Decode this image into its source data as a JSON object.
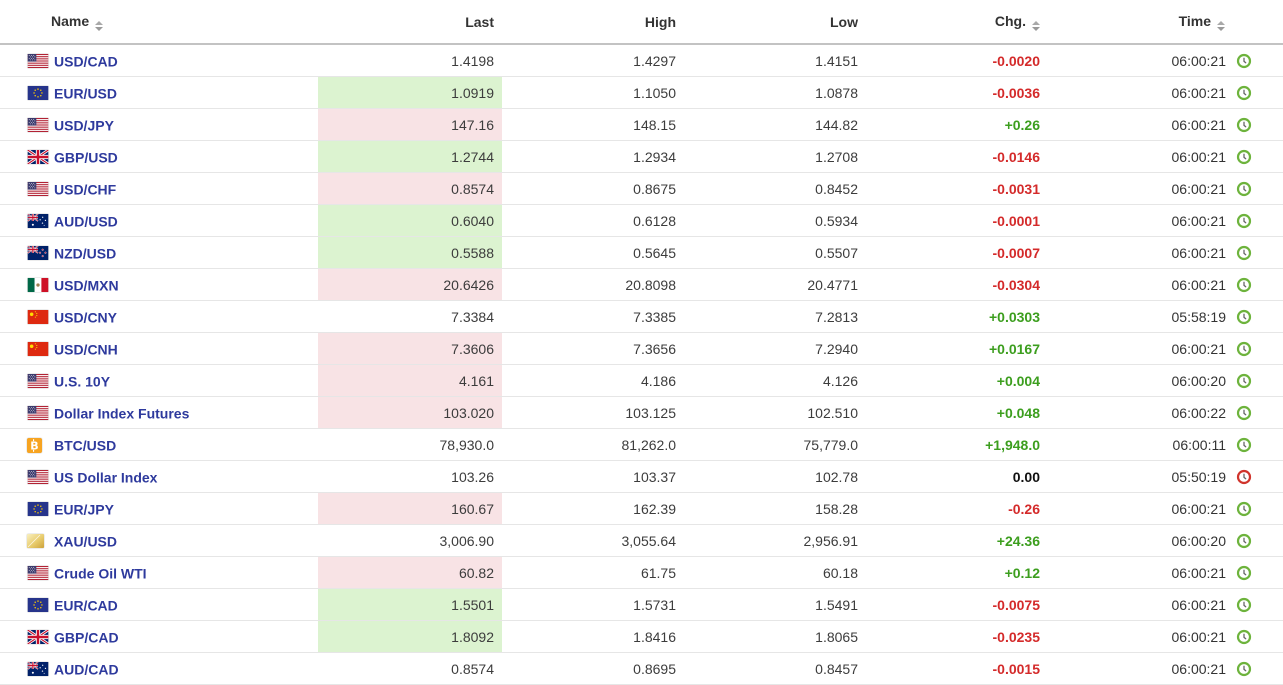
{
  "table": {
    "columns": [
      {
        "label": "Name",
        "sortable": true
      },
      {
        "label": "Last",
        "sortable": false
      },
      {
        "label": "High",
        "sortable": false
      },
      {
        "label": "Low",
        "sortable": false
      },
      {
        "label": "Chg.",
        "sortable": true
      },
      {
        "label": "Time",
        "sortable": true
      }
    ],
    "rows": [
      {
        "name": "USD/CAD",
        "icon": "us-flag-icon",
        "last": "1.4198",
        "last_highlight": "none",
        "high": "1.4297",
        "low": "1.4151",
        "chg": "-0.0020",
        "chg_dir": "down",
        "time": "06:00:21",
        "clock": "green"
      },
      {
        "name": "EUR/USD",
        "icon": "eu-flag-icon",
        "last": "1.0919",
        "last_highlight": "up",
        "high": "1.1050",
        "low": "1.0878",
        "chg": "-0.0036",
        "chg_dir": "down",
        "time": "06:00:21",
        "clock": "green"
      },
      {
        "name": "USD/JPY",
        "icon": "us-flag-icon",
        "last": "147.16",
        "last_highlight": "down",
        "high": "148.15",
        "low": "144.82",
        "chg": "+0.26",
        "chg_dir": "up",
        "time": "06:00:21",
        "clock": "green"
      },
      {
        "name": "GBP/USD",
        "icon": "uk-flag-icon",
        "last": "1.2744",
        "last_highlight": "up",
        "high": "1.2934",
        "low": "1.2708",
        "chg": "-0.0146",
        "chg_dir": "down",
        "time": "06:00:21",
        "clock": "green"
      },
      {
        "name": "USD/CHF",
        "icon": "us-flag-icon",
        "last": "0.8574",
        "last_highlight": "down",
        "high": "0.8675",
        "low": "0.8452",
        "chg": "-0.0031",
        "chg_dir": "down",
        "time": "06:00:21",
        "clock": "green"
      },
      {
        "name": "AUD/USD",
        "icon": "au-flag-icon",
        "last": "0.6040",
        "last_highlight": "up",
        "high": "0.6128",
        "low": "0.5934",
        "chg": "-0.0001",
        "chg_dir": "down",
        "time": "06:00:21",
        "clock": "green"
      },
      {
        "name": "NZD/USD",
        "icon": "nz-flag-icon",
        "last": "0.5588",
        "last_highlight": "up",
        "high": "0.5645",
        "low": "0.5507",
        "chg": "-0.0007",
        "chg_dir": "down",
        "time": "06:00:21",
        "clock": "green"
      },
      {
        "name": "USD/MXN",
        "icon": "mx-flag-icon",
        "last": "20.6426",
        "last_highlight": "down",
        "high": "20.8098",
        "low": "20.4771",
        "chg": "-0.0304",
        "chg_dir": "down",
        "time": "06:00:21",
        "clock": "green"
      },
      {
        "name": "USD/CNY",
        "icon": "cn-flag-icon",
        "last": "7.3384",
        "last_highlight": "none",
        "high": "7.3385",
        "low": "7.2813",
        "chg": "+0.0303",
        "chg_dir": "up",
        "time": "05:58:19",
        "clock": "green"
      },
      {
        "name": "USD/CNH",
        "icon": "cn-flag-icon",
        "last": "7.3606",
        "last_highlight": "down",
        "high": "7.3656",
        "low": "7.2940",
        "chg": "+0.0167",
        "chg_dir": "up",
        "time": "06:00:21",
        "clock": "green"
      },
      {
        "name": "U.S. 10Y",
        "icon": "us-flag-icon",
        "last": "4.161",
        "last_highlight": "down",
        "high": "4.186",
        "low": "4.126",
        "chg": "+0.004",
        "chg_dir": "up",
        "time": "06:00:20",
        "clock": "green"
      },
      {
        "name": "Dollar Index Futures",
        "icon": "us-flag-icon",
        "last": "103.020",
        "last_highlight": "down",
        "high": "103.125",
        "low": "102.510",
        "chg": "+0.048",
        "chg_dir": "up",
        "time": "06:00:22",
        "clock": "green"
      },
      {
        "name": "BTC/USD",
        "icon": "btc-icon",
        "last": "78,930.0",
        "last_highlight": "none",
        "high": "81,262.0",
        "low": "75,779.0",
        "chg": "+1,948.0",
        "chg_dir": "up",
        "time": "06:00:11",
        "clock": "green"
      },
      {
        "name": "US Dollar Index",
        "icon": "us-flag-icon",
        "last": "103.26",
        "last_highlight": "none",
        "high": "103.37",
        "low": "102.78",
        "chg": "0.00",
        "chg_dir": "flat",
        "time": "05:50:19",
        "clock": "red"
      },
      {
        "name": "EUR/JPY",
        "icon": "eu-flag-icon",
        "last": "160.67",
        "last_highlight": "down",
        "high": "162.39",
        "low": "158.28",
        "chg": "-0.26",
        "chg_dir": "down",
        "time": "06:00:21",
        "clock": "green"
      },
      {
        "name": "XAU/USD",
        "icon": "gold-icon",
        "last": "3,006.90",
        "last_highlight": "none",
        "high": "3,055.64",
        "low": "2,956.91",
        "chg": "+24.36",
        "chg_dir": "up",
        "time": "06:00:20",
        "clock": "green"
      },
      {
        "name": "Crude Oil WTI",
        "icon": "us-flag-icon",
        "last": "60.82",
        "last_highlight": "down",
        "high": "61.75",
        "low": "60.18",
        "chg": "+0.12",
        "chg_dir": "up",
        "time": "06:00:21",
        "clock": "green"
      },
      {
        "name": "EUR/CAD",
        "icon": "eu-flag-icon",
        "last": "1.5501",
        "last_highlight": "up",
        "high": "1.5731",
        "low": "1.5491",
        "chg": "-0.0075",
        "chg_dir": "down",
        "time": "06:00:21",
        "clock": "green"
      },
      {
        "name": "GBP/CAD",
        "icon": "uk-flag-icon",
        "last": "1.8092",
        "last_highlight": "up",
        "high": "1.8416",
        "low": "1.8065",
        "chg": "-0.0235",
        "chg_dir": "down",
        "time": "06:00:21",
        "clock": "green"
      },
      {
        "name": "AUD/CAD",
        "icon": "au-flag-icon",
        "last": "0.8574",
        "last_highlight": "none",
        "high": "0.8695",
        "low": "0.8457",
        "chg": "-0.0015",
        "chg_dir": "down",
        "time": "06:00:21",
        "clock": "green"
      }
    ]
  },
  "colors": {
    "link": "#2e3a9d",
    "positive": "#3c9e1e",
    "negative": "#d42a2a",
    "neutral": "#111111",
    "last_up_bg": "#dcf3d0",
    "last_down_bg": "#f8e3e5",
    "clock_active": "#6db33c",
    "clock_stale": "#d0342c",
    "row_border": "#e6e6e6",
    "header_border": "#c3c3c3"
  }
}
